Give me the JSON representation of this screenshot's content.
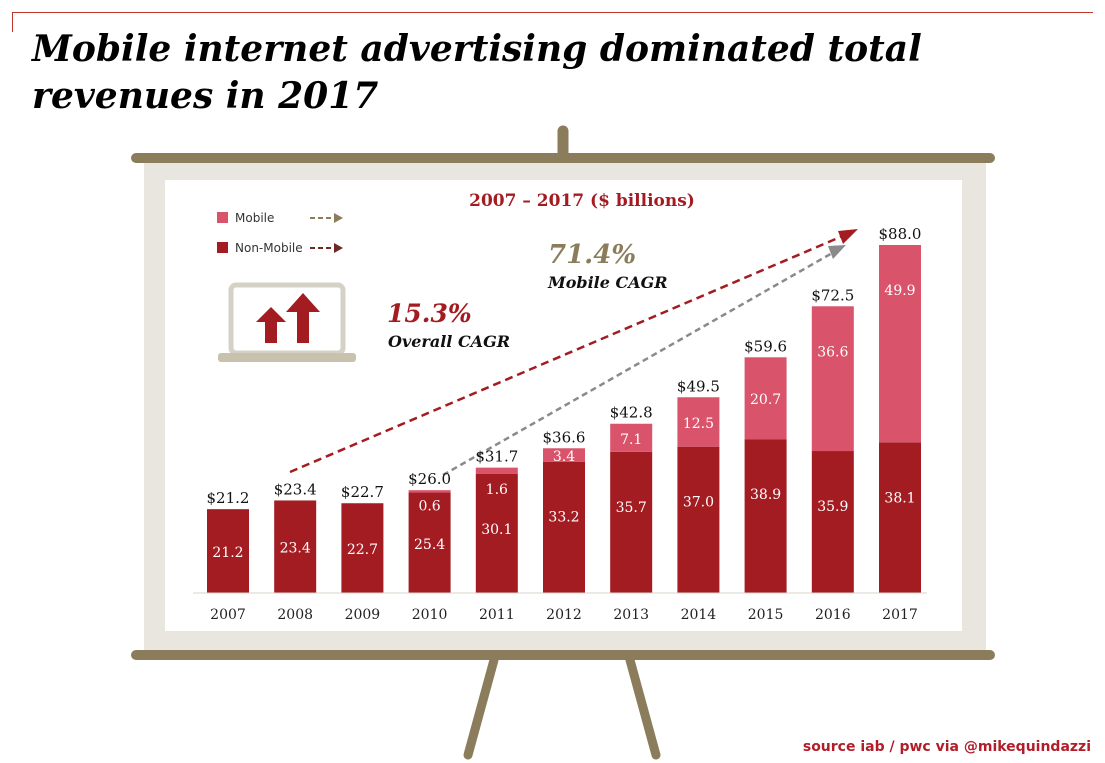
{
  "page": {
    "title": "Mobile internet advertising dominated total revenues in 2017",
    "source": "source iab / pwc via @mikequindazzi"
  },
  "legend": {
    "mobile_label": "Mobile",
    "non_mobile_label": "Non-Mobile"
  },
  "annotations": {
    "overall_cagr_value": "15.3%",
    "overall_cagr_label": "Overall CAGR",
    "mobile_cagr_value": "71.4%",
    "mobile_cagr_label": "Mobile CAGR"
  },
  "colors": {
    "mobile": "#d9536b",
    "non_mobile": "#a31c22",
    "easel": "#8b7d5c",
    "board_frame": "#e8e6df",
    "accent_red": "#a31c22",
    "accent_gray": "#8b7d5c"
  },
  "icons": [
    "easel-board",
    "laptop-icon",
    "up-arrow-icon"
  ],
  "chart_data": {
    "type": "bar",
    "stacked": true,
    "title": "2007 – 2017 ($ billions)",
    "categories": [
      "2007",
      "2008",
      "2009",
      "2010",
      "2011",
      "2012",
      "2013",
      "2014",
      "2015",
      "2016",
      "2017"
    ],
    "series": [
      {
        "name": "Non-Mobile",
        "values": [
          21.2,
          23.4,
          22.7,
          25.4,
          30.1,
          33.2,
          35.7,
          37.0,
          38.9,
          35.9,
          38.1
        ]
      },
      {
        "name": "Mobile",
        "values": [
          null,
          null,
          null,
          0.6,
          1.6,
          3.4,
          7.1,
          12.5,
          20.7,
          36.6,
          49.9
        ]
      }
    ],
    "segment_labels": {
      "Non-Mobile": [
        "21.2",
        "23.4",
        "22.7",
        "25.4",
        "30.1",
        "33.2",
        "35.7",
        "37.0",
        "38.9",
        "35.9",
        "38.1"
      ],
      "Mobile": [
        "",
        "",
        "",
        "0.6",
        "1.6",
        "3.4",
        "7.1",
        "12.5",
        "20.7",
        "36.6",
        "49.9"
      ]
    },
    "totals": [
      "$21.2",
      "$23.4",
      "$22.7",
      "$26.0",
      "$31.7",
      "$36.6",
      "$42.8",
      "$49.5",
      "$59.6",
      "$72.5",
      "$88.0"
    ],
    "total_values": [
      21.2,
      23.4,
      22.7,
      26.0,
      31.7,
      36.6,
      42.8,
      49.5,
      59.6,
      72.5,
      88.0
    ],
    "ylim": [
      0,
      90
    ],
    "grid": false,
    "legend_position": "top-left"
  }
}
